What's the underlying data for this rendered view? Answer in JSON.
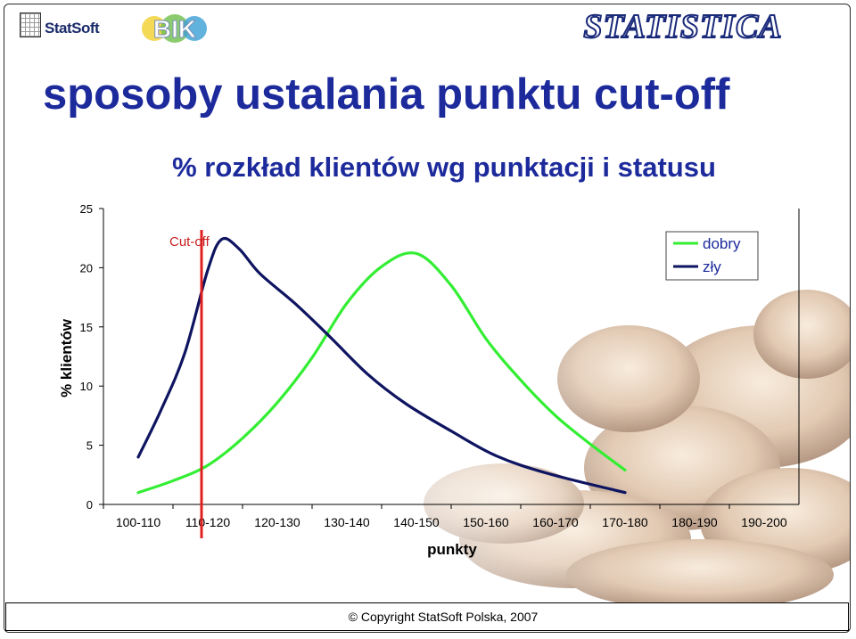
{
  "header": {
    "statsoft_logo": "StatSoft",
    "bik_logo": "BIK",
    "statistica_logo": "STATISTICA"
  },
  "slide": {
    "title": "sposoby ustalania punktu cut-off"
  },
  "footer": {
    "copyright": "© Copyright StatSoft Polska, 2007"
  },
  "colors": {
    "title": "#1c2a9c",
    "dobry": "#33ee33",
    "zly": "#0e1460",
    "cutoff": "#e02020"
  },
  "chart_data": {
    "type": "line",
    "title": "% rozkład klientów wg punktacji i statusu",
    "xlabel": "punkty",
    "ylabel": "% klientów",
    "categories": [
      "100-110",
      "110-120",
      "120-130",
      "130-140",
      "140-150",
      "150-160",
      "160-170",
      "170-180",
      "180-190",
      "190-200"
    ],
    "y_ticks": [
      0,
      5,
      10,
      15,
      20,
      25
    ],
    "ylim": [
      0,
      25
    ],
    "series": [
      {
        "name": "dobry",
        "color": "#33ee33",
        "values": [
          1.0,
          2.0,
          3.3,
          5.6,
          8.6,
          12.4,
          17.0,
          20.1,
          21.2,
          18.5,
          14.0,
          10.5,
          7.5,
          5.1,
          2.9
        ],
        "x": [
          0,
          0.5,
          1.0,
          1.5,
          2.0,
          2.5,
          3.0,
          3.5,
          4.0,
          4.5,
          5.0,
          5.5,
          6.0,
          6.5,
          7.0
        ]
      },
      {
        "name": "zły",
        "color": "#0e1460",
        "values": [
          4.0,
          8.0,
          12.8,
          19.8,
          22.4,
          21.6,
          19.5,
          17.0,
          14.2,
          11.0,
          8.5,
          6.2,
          4.1,
          2.6,
          1.0
        ],
        "x": [
          0,
          0.33,
          0.67,
          1.0,
          1.2,
          1.45,
          1.75,
          2.25,
          2.75,
          3.3,
          3.85,
          4.5,
          5.15,
          5.9,
          7.0
        ]
      }
    ],
    "legend": {
      "position": "top-right",
      "entries": [
        "dobry",
        "zły"
      ]
    },
    "annotations": [
      {
        "label": "Cut-off",
        "at_category_position": 1.0
      }
    ],
    "grid": false
  }
}
